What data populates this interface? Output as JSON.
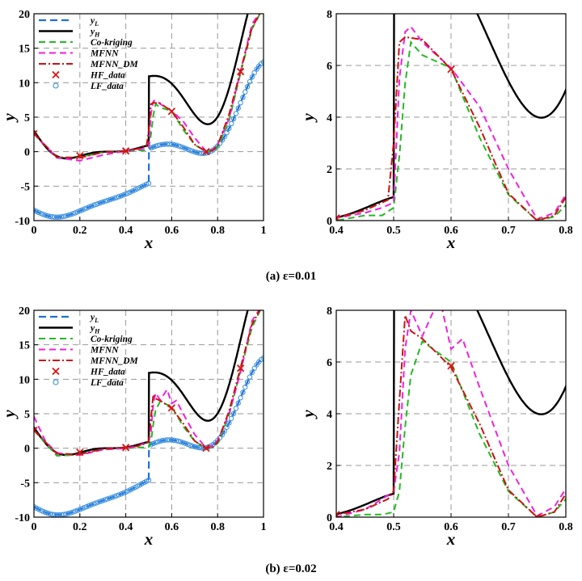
{
  "captions": [
    "(a) ε=0.01",
    "(b) ε=0.02"
  ],
  "legend": [
    "y_L",
    "y_H",
    "Co-kriging",
    "MFNN",
    "MFNN_DM",
    "HF_data",
    "LF_data"
  ],
  "colors": {
    "y_L": "#1f6fd6",
    "y_H": "#000000",
    "cokriging": "#22bb22",
    "mfnn": "#ee22dd",
    "mfnn_dm": "#cc1111",
    "hf_data": "#dd1111",
    "lf_data": "#3a8fe0",
    "grid": "#999999"
  },
  "chart_data": [
    {
      "id": "a-left",
      "type": "line",
      "panel": "a",
      "zoom": false,
      "xlabel": "x",
      "ylabel": "y",
      "xlim": [
        0,
        1
      ],
      "ylim": [
        -10,
        20
      ],
      "xticks": [
        0,
        0.2,
        0.4,
        0.6,
        0.8,
        1
      ],
      "yticks": [
        -10,
        -5,
        0,
        5,
        10,
        15,
        20
      ],
      "xticklabels": [
        "0",
        "0.2",
        "0.4",
        "0.6",
        "0.8",
        "1"
      ],
      "yticklabels": [
        "-10",
        "-5",
        "0",
        "5",
        "10",
        "15",
        "20"
      ],
      "grid": true,
      "legend": "top-left",
      "perturb": 0.01
    },
    {
      "id": "a-right",
      "type": "line",
      "panel": "a",
      "zoom": true,
      "xlabel": "x",
      "ylabel": "y",
      "xlim": [
        0.4,
        0.8
      ],
      "ylim": [
        0,
        8
      ],
      "xticks": [
        0.4,
        0.5,
        0.6,
        0.7,
        0.8
      ],
      "yticks": [
        0,
        2,
        4,
        6,
        8
      ],
      "xticklabels": [
        "0.4",
        "0.5",
        "0.6",
        "0.7",
        "0.8"
      ],
      "yticklabels": [
        "0",
        "2",
        "4",
        "6",
        "8"
      ],
      "grid": true,
      "legend": "none",
      "perturb": 0.01
    },
    {
      "id": "b-left",
      "type": "line",
      "panel": "b",
      "zoom": false,
      "xlabel": "x",
      "ylabel": "y",
      "xlim": [
        0,
        1
      ],
      "ylim": [
        -10,
        20
      ],
      "xticks": [
        0,
        0.2,
        0.4,
        0.6,
        0.8,
        1
      ],
      "yticks": [
        -10,
        -5,
        0,
        5,
        10,
        15,
        20
      ],
      "xticklabels": [
        "0",
        "0.2",
        "0.4",
        "0.6",
        "0.8",
        "1"
      ],
      "yticklabels": [
        "-10",
        "-5",
        "0",
        "5",
        "10",
        "15",
        "20"
      ],
      "grid": true,
      "legend": "top-left",
      "perturb": 0.02
    },
    {
      "id": "b-right",
      "type": "line",
      "panel": "b",
      "zoom": true,
      "xlabel": "x",
      "ylabel": "y",
      "xlim": [
        0.4,
        0.8
      ],
      "ylim": [
        0,
        8
      ],
      "xticks": [
        0.4,
        0.5,
        0.6,
        0.7,
        0.8
      ],
      "yticks": [
        0,
        2,
        4,
        6,
        8
      ],
      "xticklabels": [
        "0.4",
        "0.5",
        "0.6",
        "0.7",
        "0.8"
      ],
      "yticklabels": [
        "0",
        "2",
        "4",
        "6",
        "8"
      ],
      "grid": true,
      "legend": "none",
      "perturb": 0.02
    }
  ],
  "series": {
    "hf_data": {
      "x": [
        0,
        0.2,
        0.4,
        0.6,
        0.75,
        0.9
      ],
      "y": [
        2.6,
        -0.6,
        0.1,
        5.85,
        0.0,
        11.6
      ]
    },
    "cokriging_a": {
      "x": [
        0,
        0.1,
        0.2,
        0.3,
        0.4,
        0.45,
        0.48,
        0.5,
        0.51,
        0.52,
        0.53,
        0.55,
        0.6,
        0.65,
        0.7,
        0.75,
        0.78,
        0.8,
        0.85,
        0.9,
        0.95,
        1
      ],
      "y": [
        2.6,
        -0.9,
        -0.8,
        -0.1,
        0.0,
        0.2,
        0.2,
        0.5,
        2.5,
        5.3,
        6.9,
        6.4,
        5.9,
        3.2,
        1.0,
        0.0,
        0.15,
        0.6,
        4.5,
        11.4,
        17.8,
        21.0
      ]
    },
    "mfnn_a": {
      "x": [
        0,
        0.1,
        0.2,
        0.3,
        0.4,
        0.45,
        0.48,
        0.5,
        0.51,
        0.52,
        0.53,
        0.55,
        0.6,
        0.65,
        0.7,
        0.75,
        0.78,
        0.8,
        0.85,
        0.9,
        0.95,
        1
      ],
      "y": [
        2.6,
        -0.9,
        -1.3,
        -0.5,
        0.1,
        0.3,
        0.5,
        0.7,
        5.5,
        7.3,
        7.5,
        6.9,
        5.9,
        4.4,
        2.0,
        0.05,
        0.3,
        1.0,
        4.8,
        11.7,
        18.5,
        21.0
      ]
    },
    "mfnn_dm_a": {
      "x": [
        0,
        0.1,
        0.2,
        0.3,
        0.4,
        0.45,
        0.48,
        0.49,
        0.5,
        0.51,
        0.52,
        0.55,
        0.6,
        0.65,
        0.7,
        0.75,
        0.78,
        0.8,
        0.85,
        0.9,
        0.95,
        1
      ],
      "y": [
        2.6,
        -0.8,
        -0.9,
        -0.1,
        0.1,
        0.4,
        0.7,
        0.8,
        3.0,
        6.9,
        7.1,
        7.0,
        5.85,
        3.6,
        1.05,
        0.0,
        0.2,
        0.9,
        5.4,
        11.7,
        18.0,
        21.0
      ]
    },
    "cokriging_b": {
      "x": [
        0,
        0.1,
        0.2,
        0.3,
        0.4,
        0.45,
        0.48,
        0.5,
        0.51,
        0.52,
        0.53,
        0.55,
        0.6,
        0.65,
        0.7,
        0.75,
        0.78,
        0.8,
        0.85,
        0.9,
        0.95,
        1
      ],
      "y": [
        2.6,
        -1.1,
        -0.9,
        -0.2,
        0.0,
        0.1,
        0.1,
        0.2,
        1.0,
        3.5,
        5.5,
        6.8,
        6.0,
        3.2,
        1.0,
        0.0,
        0.2,
        0.7,
        4.8,
        11.3,
        17.5,
        21.0
      ]
    },
    "mfnn_b": {
      "x": [
        0,
        0.05,
        0.1,
        0.2,
        0.3,
        0.4,
        0.45,
        0.48,
        0.5,
        0.51,
        0.52,
        0.53,
        0.55,
        0.58,
        0.6,
        0.62,
        0.65,
        0.7,
        0.75,
        0.78,
        0.8,
        0.85,
        0.9,
        0.95,
        1
      ],
      "y": [
        4.6,
        1.0,
        -0.7,
        -1.0,
        -0.2,
        0.0,
        0.3,
        0.7,
        1.0,
        2.5,
        6.5,
        8.0,
        7.0,
        8.5,
        6.5,
        6.9,
        5.0,
        2.0,
        0.05,
        0.4,
        1.1,
        5.0,
        11.0,
        18.5,
        21.0
      ]
    },
    "mfnn_dm_b": {
      "x": [
        0,
        0.1,
        0.2,
        0.3,
        0.4,
        0.45,
        0.48,
        0.49,
        0.5,
        0.51,
        0.52,
        0.53,
        0.55,
        0.6,
        0.65,
        0.7,
        0.75,
        0.78,
        0.8,
        0.85,
        0.9,
        0.95,
        1
      ],
      "y": [
        2.6,
        -0.8,
        -0.9,
        -0.1,
        0.1,
        0.3,
        0.6,
        0.7,
        1.0,
        4.5,
        7.8,
        7.2,
        6.9,
        5.8,
        3.6,
        1.05,
        0.0,
        0.2,
        0.9,
        5.4,
        11.7,
        18.0,
        21.0
      ]
    }
  }
}
